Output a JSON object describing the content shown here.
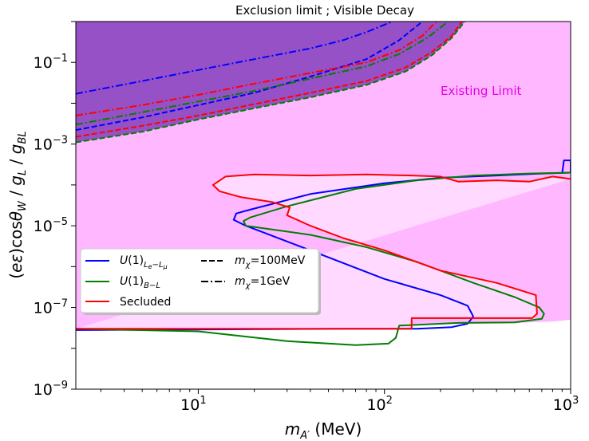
{
  "chart_data": {
    "type": "line",
    "title": "Exclusion limit ; Visible Decay",
    "xlabel": "m_A' (MeV)",
    "ylabel": "(eε)cosθ_W / g_L / g_BL",
    "xscale": "log",
    "yscale": "log",
    "xlim": [
      2.2,
      1000
    ],
    "ylim": [
      1e-09,
      1.0
    ],
    "grid": false,
    "x_ticks": [
      {
        "base": "10",
        "exp": "1",
        "value": 10
      },
      {
        "base": "10",
        "exp": "2",
        "value": 100
      },
      {
        "base": "10",
        "exp": "3",
        "value": 1000
      }
    ],
    "y_ticks": [
      {
        "base": "10",
        "exp": "−1",
        "value": 0.1
      },
      {
        "base": "10",
        "exp": "−3",
        "value": 0.001
      },
      {
        "base": "10",
        "exp": "−5",
        "value": 1e-05
      },
      {
        "base": "10",
        "exp": "−7",
        "value": 1e-07
      },
      {
        "base": "10",
        "exp": "−9",
        "value": 1e-09
      }
    ],
    "annotation": "Existing Limit",
    "colors": {
      "existing": "#ffb8ff",
      "ule_lmu": "#0000ff",
      "ub_l": "#007f00",
      "secluded": "#ff0000",
      "shade_purple": "#8c46c0",
      "inner_fill": "#ffd9ff"
    },
    "legend": {
      "position": "lower-left",
      "entries": [
        {
          "label": "U(1)_{Le−Lμ}",
          "color": "#0000ff",
          "style": "solid"
        },
        {
          "label": "U(1)_{B−L}",
          "color": "#007f00",
          "style": "solid"
        },
        {
          "label": "Secluded",
          "color": "#ff0000",
          "style": "solid"
        },
        {
          "label": "m_χ=100MeV",
          "color": "#000000",
          "style": "dashed"
        },
        {
          "label": "m_χ=1GeV",
          "color": "#000000",
          "style": "dashdot"
        }
      ]
    },
    "series": [
      {
        "name": "U(1)_{Le−Lμ}",
        "color": "#0000ff",
        "style": "solid",
        "x": [
          2.2,
          60,
          150,
          230,
          280,
          300,
          280,
          200,
          100,
          40,
          18,
          15.5,
          16,
          18.5,
          40,
          100,
          200,
          400,
          700,
          1000,
          1000,
          920,
          900
        ],
        "y": [
          2.8e-08,
          3e-08,
          3e-08,
          3.3e-08,
          4e-08,
          6e-08,
          1.1e-07,
          2e-07,
          5e-07,
          2.5e-06,
          1e-05,
          1.4e-05,
          2e-05,
          2.4e-05,
          6e-05,
          0.00011,
          0.00015,
          0.00017,
          0.00019,
          0.0002,
          0.0004,
          0.0004,
          0.00019
        ]
      },
      {
        "name": "U(1)_{B−L}",
        "color": "#007f00",
        "style": "solid",
        "x": [
          2.2,
          10,
          30,
          70,
          105,
          115,
          120,
          250,
          500,
          700,
          720,
          680,
          500,
          300,
          150,
          80,
          40,
          18,
          17.5,
          19,
          30,
          70,
          150,
          300,
          600,
          800,
          1000
        ],
        "y": [
          3e-08,
          2.6e-08,
          1.5e-08,
          1.2e-08,
          1.3e-08,
          1.8e-08,
          3.6e-08,
          4.2e-08,
          4.3e-08,
          5.3e-08,
          7e-08,
          1e-07,
          1.8e-07,
          4e-07,
          1.3e-06,
          3e-06,
          6e-06,
          1e-05,
          1.3e-05,
          1.6e-05,
          3e-05,
          8e-05,
          0.00013,
          0.00017,
          0.00019,
          0.000195,
          0.0002
        ]
      },
      {
        "name": "Secluded",
        "color": "#ff0000",
        "style": "solid",
        "x": [
          2.2,
          60,
          140,
          140,
          500,
          620,
          660,
          650,
          400,
          200,
          100,
          60,
          40,
          30,
          31,
          25,
          17,
          13,
          12,
          14,
          20,
          40,
          80,
          140,
          200,
          250,
          400,
          600,
          800,
          1000
        ],
        "y": [
          3e-08,
          3e-08,
          3e-08,
          5.5e-08,
          5.5e-08,
          5.5e-08,
          7e-08,
          2e-07,
          4e-07,
          8e-07,
          2.5e-06,
          5e-06,
          1e-05,
          1.8e-05,
          2.8e-05,
          3.8e-05,
          5e-05,
          7e-05,
          0.0001,
          0.00016,
          0.00018,
          0.00017,
          0.00018,
          0.00017,
          0.00016,
          0.00012,
          0.00013,
          0.00012,
          0.00016,
          0.00014
        ]
      },
      {
        "name": "U(1)_{Le−Lμ} m_χ=1GeV",
        "color": "#0000ff",
        "style": "dashdot",
        "x": [
          2.2,
          5,
          10,
          20,
          40,
          60,
          80,
          110
        ],
        "y": [
          0.017,
          0.035,
          0.065,
          0.12,
          0.22,
          0.35,
          0.55,
          1.0
        ]
      },
      {
        "name": "U(1)_{Le−Lμ} m_χ=100MeV",
        "color": "#0000ff",
        "style": "dashed",
        "x": [
          2.2,
          5,
          10,
          20,
          40,
          80,
          120,
          160
        ],
        "y": [
          0.0022,
          0.0045,
          0.009,
          0.018,
          0.045,
          0.12,
          0.35,
          1.0
        ]
      },
      {
        "name": "U(1)_{B−L} m_χ=1GeV",
        "color": "#007f00",
        "style": "dashdot",
        "x": [
          2.2,
          5,
          10,
          20,
          40,
          80,
          120,
          170,
          220
        ],
        "y": [
          0.003,
          0.006,
          0.011,
          0.02,
          0.04,
          0.08,
          0.16,
          0.4,
          1.0
        ]
      },
      {
        "name": "U(1)_{B−L} m_χ=100MeV",
        "color": "#007f00",
        "style": "dashed",
        "x": [
          2.2,
          5,
          10,
          20,
          40,
          80,
          130,
          180,
          230,
          270
        ],
        "y": [
          0.0011,
          0.002,
          0.004,
          0.0075,
          0.014,
          0.028,
          0.06,
          0.15,
          0.4,
          1.0
        ]
      },
      {
        "name": "Secluded m_χ=1GeV",
        "color": "#ff0000",
        "style": "dashdot",
        "x": [
          2.2,
          5,
          10,
          20,
          40,
          80,
          120,
          160,
          190
        ],
        "y": [
          0.005,
          0.009,
          0.016,
          0.03,
          0.055,
          0.1,
          0.2,
          0.45,
          1.0
        ]
      },
      {
        "name": "Secluded m_χ=100MeV",
        "color": "#ff0000",
        "style": "dashed",
        "x": [
          2.2,
          5,
          10,
          20,
          40,
          80,
          130,
          180,
          230,
          260
        ],
        "y": [
          0.0015,
          0.0028,
          0.005,
          0.0095,
          0.018,
          0.035,
          0.075,
          0.18,
          0.45,
          1.0
        ]
      }
    ],
    "existing_limit": {
      "x": [
        2.2,
        30,
        80,
        150,
        300,
        500,
        800,
        1000
      ],
      "y": [
        3e-08,
        3.2e-08,
        3.6e-08,
        3.8e-08,
        4e-08,
        4.2e-08,
        4.5e-08,
        5e-08
      ]
    }
  }
}
